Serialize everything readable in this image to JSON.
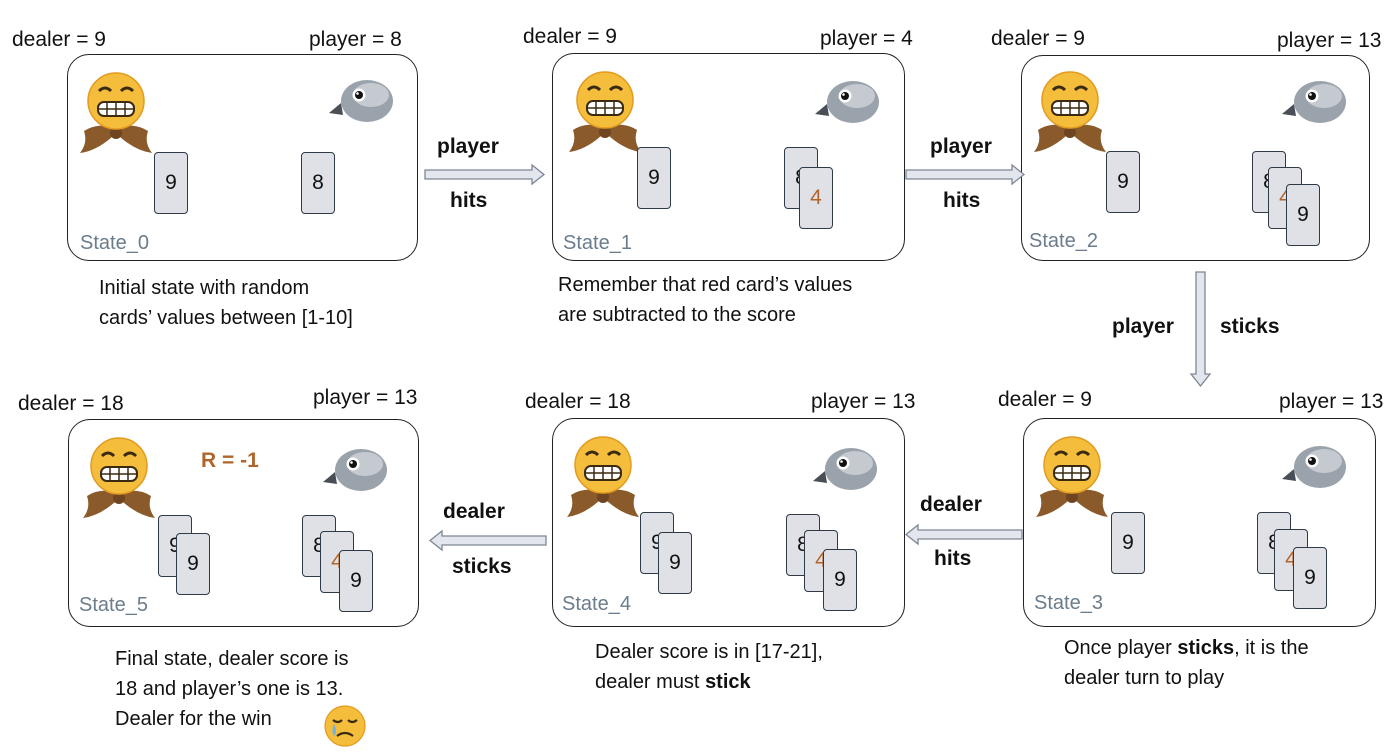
{
  "states": [
    {
      "label": "State_0",
      "dealer": "dealer = 9",
      "player": "player = 8",
      "dealer_cards": [
        "9"
      ],
      "player_cards": [
        "8"
      ]
    },
    {
      "label": "State_1",
      "dealer": "dealer = 9",
      "player": "player = 4",
      "dealer_cards": [
        "9"
      ],
      "player_cards": [
        "8",
        "4"
      ]
    },
    {
      "label": "State_2",
      "dealer": "dealer = 9",
      "player": "player = 13",
      "dealer_cards": [
        "9"
      ],
      "player_cards": [
        "8",
        "4",
        "9"
      ]
    },
    {
      "label": "State_3",
      "dealer": "dealer = 9",
      "player": "player = 13",
      "dealer_cards": [
        "9"
      ],
      "player_cards": [
        "8",
        "4",
        "9"
      ]
    },
    {
      "label": "State_4",
      "dealer": "dealer = 18",
      "player": "player = 13",
      "dealer_cards": [
        "9",
        "9"
      ],
      "player_cards": [
        "8",
        "4",
        "9"
      ]
    },
    {
      "label": "State_5",
      "dealer": "dealer = 18",
      "player": "player = 13",
      "dealer_cards": [
        "9",
        "9"
      ],
      "player_cards": [
        "8",
        "4",
        "9"
      ],
      "reward": "R = -1"
    }
  ],
  "transitions": [
    {
      "actor": "player",
      "action": "hits"
    },
    {
      "actor": "player",
      "action": "hits"
    },
    {
      "actor": "player",
      "action": "sticks"
    },
    {
      "actor": "dealer",
      "action": "hits"
    },
    {
      "actor": "dealer",
      "action": "sticks"
    }
  ],
  "captions": {
    "s0": [
      "Initial state with random",
      "cards’ values between [1-10]"
    ],
    "s1": [
      "Remember that red card’s values",
      "are subtracted to the score"
    ],
    "s3": {
      "l1_pre": "Once player ",
      "l1_bold": "sticks",
      "l1_post": ", it is the",
      "l2": "dealer turn to play"
    },
    "s4": {
      "l1": "Dealer score is in [17-21],",
      "l2_pre": "dealer must ",
      "l2_bold": "stick"
    },
    "s5": [
      "Final state, dealer score is",
      "18 and player’s one is 13.",
      "Dealer for the win"
    ]
  },
  "icons": {
    "dealer": "grimacing-face-bowtie-icon",
    "player": "bird-head-icon",
    "loss": "crying-face-icon"
  },
  "colors": {
    "card_fill": "#dfe1e6",
    "red_card_text": "#b0652a",
    "state_label": "#6b7c8c",
    "arrow_fill": "#e3e6ec"
  }
}
